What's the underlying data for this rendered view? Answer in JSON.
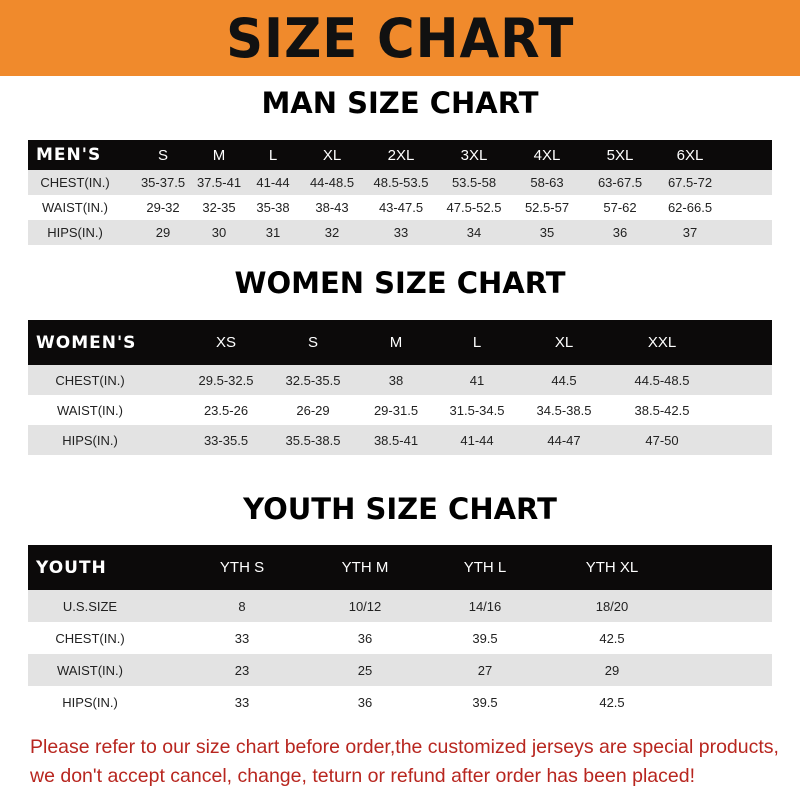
{
  "title": "SIZE CHART",
  "colors": {
    "banner": "#f08a2c",
    "header_row": "#0c0a0a",
    "stripe": "#e3e3e3",
    "notice": "#b8261f"
  },
  "men": {
    "title": "MAN SIZE CHART",
    "header": [
      "MEN'S",
      "S",
      "M",
      "L",
      "XL",
      "2XL",
      "3XL",
      "4XL",
      "5XL",
      "6XL"
    ],
    "rows": [
      [
        "CHEST(IN.)",
        "35-37.5",
        "37.5-41",
        "41-44",
        "44-48.5",
        "48.5-53.5",
        "53.5-58",
        "58-63",
        "63-67.5",
        "67.5-72"
      ],
      [
        "WAIST(IN.)",
        "29-32",
        "32-35",
        "35-38",
        "38-43",
        "43-47.5",
        "47.5-52.5",
        "52.5-57",
        "57-62",
        "62-66.5"
      ],
      [
        "HIPS(IN.)",
        "29",
        "30",
        "31",
        "32",
        "33",
        "34",
        "35",
        "36",
        "37"
      ]
    ]
  },
  "women": {
    "title": "WOMEN SIZE CHART",
    "header": [
      "WOMEN'S",
      "XS",
      "S",
      "M",
      "L",
      "XL",
      "XXL"
    ],
    "rows": [
      [
        "CHEST(IN.)",
        "29.5-32.5",
        "32.5-35.5",
        "38",
        "41",
        "44.5",
        "44.5-48.5"
      ],
      [
        "WAIST(IN.)",
        "23.5-26",
        "26-29",
        "29-31.5",
        "31.5-34.5",
        "34.5-38.5",
        "38.5-42.5"
      ],
      [
        "HIPS(IN.)",
        "33-35.5",
        "35.5-38.5",
        "38.5-41",
        "41-44",
        "44-47",
        "47-50"
      ]
    ]
  },
  "youth": {
    "title": "YOUTH SIZE CHART",
    "header": [
      "YOUTH",
      "YTH S",
      "YTH M",
      "YTH L",
      "YTH XL"
    ],
    "rows": [
      [
        "U.S.SIZE",
        "8",
        "10/12",
        "14/16",
        "18/20"
      ],
      [
        "CHEST(IN.)",
        "33",
        "36",
        "39.5",
        "42.5"
      ],
      [
        "WAIST(IN.)",
        "23",
        "25",
        "27",
        "29"
      ],
      [
        "HIPS(IN.)",
        "33",
        "36",
        "39.5",
        "42.5"
      ]
    ]
  },
  "notice": {
    "line1": "Please refer to our size chart before order,the customized jerseys are special products,",
    "line2": "we don't accept cancel, change, teturn or refund after order has been placed!"
  }
}
